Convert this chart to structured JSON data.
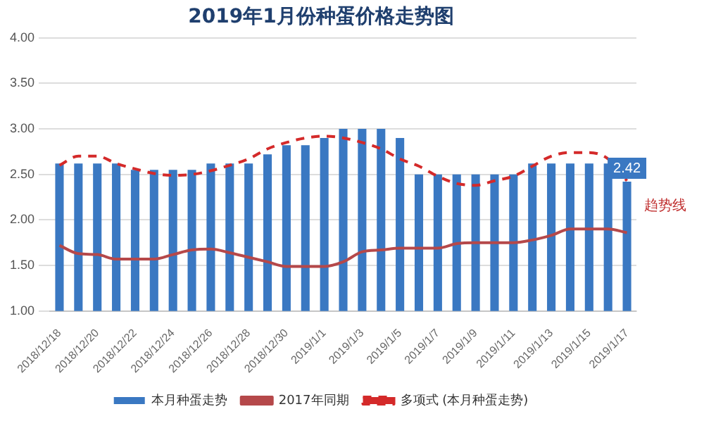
{
  "chart_data": {
    "type": "bar",
    "title": "2019年1月份种蛋价格走势图",
    "categories": [
      "2018/12/18",
      null,
      "2018/12/20",
      null,
      "2018/12/22",
      null,
      "2018/12/24",
      null,
      "2018/12/26",
      null,
      "2018/12/28",
      null,
      "2018/12/30",
      null,
      "2019/1/1",
      null,
      "2019/1/3",
      null,
      "2019/1/5",
      null,
      "2019/1/7",
      null,
      "2019/1/9",
      null,
      "2019/1/11",
      null,
      "2019/1/13",
      null,
      "2019/1/15",
      null,
      "2019/1/17"
    ],
    "series": [
      {
        "name": "本月种蛋走势",
        "color": "#3a78c2",
        "values": [
          2.62,
          2.62,
          2.62,
          2.62,
          2.55,
          2.55,
          2.55,
          2.55,
          2.62,
          2.62,
          2.62,
          2.72,
          2.82,
          2.82,
          2.9,
          3.0,
          3.0,
          3.0,
          2.9,
          2.5,
          2.5,
          2.5,
          2.5,
          2.5,
          2.5,
          2.62,
          2.62,
          2.62,
          2.62,
          2.62,
          2.42
        ],
        "value_labels": [
          null,
          null,
          null,
          null,
          null,
          null,
          null,
          null,
          null,
          null,
          null,
          null,
          null,
          null,
          null,
          null,
          null,
          null,
          null,
          null,
          null,
          null,
          null,
          null,
          null,
          null,
          null,
          null,
          null,
          null,
          "2.42"
        ]
      },
      {
        "name": "2017年同期",
        "type": "line",
        "color": "#b5484a",
        "line_style": "solid",
        "values": [
          1.72,
          1.63,
          1.62,
          1.57,
          1.57,
          1.57,
          1.62,
          1.67,
          1.68,
          1.64,
          1.59,
          1.54,
          1.49,
          1.49,
          1.49,
          1.54,
          1.65,
          1.67,
          1.69,
          1.69,
          1.69,
          1.74,
          1.75,
          1.75,
          1.75,
          1.78,
          1.83,
          1.9,
          1.9,
          1.9,
          1.86
        ]
      },
      {
        "name": "多项式 (本月种蛋走势)",
        "type": "line",
        "color": "#d42a2a",
        "line_style": "dashed",
        "values": [
          2.6,
          2.7,
          2.7,
          2.62,
          2.56,
          2.51,
          2.49,
          2.5,
          2.54,
          2.6,
          2.67,
          2.78,
          2.85,
          2.9,
          2.92,
          2.9,
          2.85,
          2.78,
          2.67,
          2.59,
          2.48,
          2.4,
          2.38,
          2.43,
          2.48,
          2.59,
          2.7,
          2.74,
          2.74,
          2.67,
          2.43
        ]
      }
    ],
    "annotations": [
      {
        "text": "趋势线",
        "x": "2019/1/17",
        "y": 2.43
      }
    ],
    "ylim": [
      1,
      4
    ],
    "yticks": [
      {
        "value": 1,
        "label": "1.00"
      },
      {
        "value": 1.5,
        "label": "1.50"
      },
      {
        "value": 2,
        "label": "2.00"
      },
      {
        "value": 2.5,
        "label": "2.50"
      },
      {
        "value": 3,
        "label": "3.00"
      },
      {
        "value": 3.5,
        "label": "3.50"
      },
      {
        "value": 4,
        "label": "4.00"
      }
    ],
    "grid": "y",
    "legend": "bottom",
    "marker": "none"
  }
}
